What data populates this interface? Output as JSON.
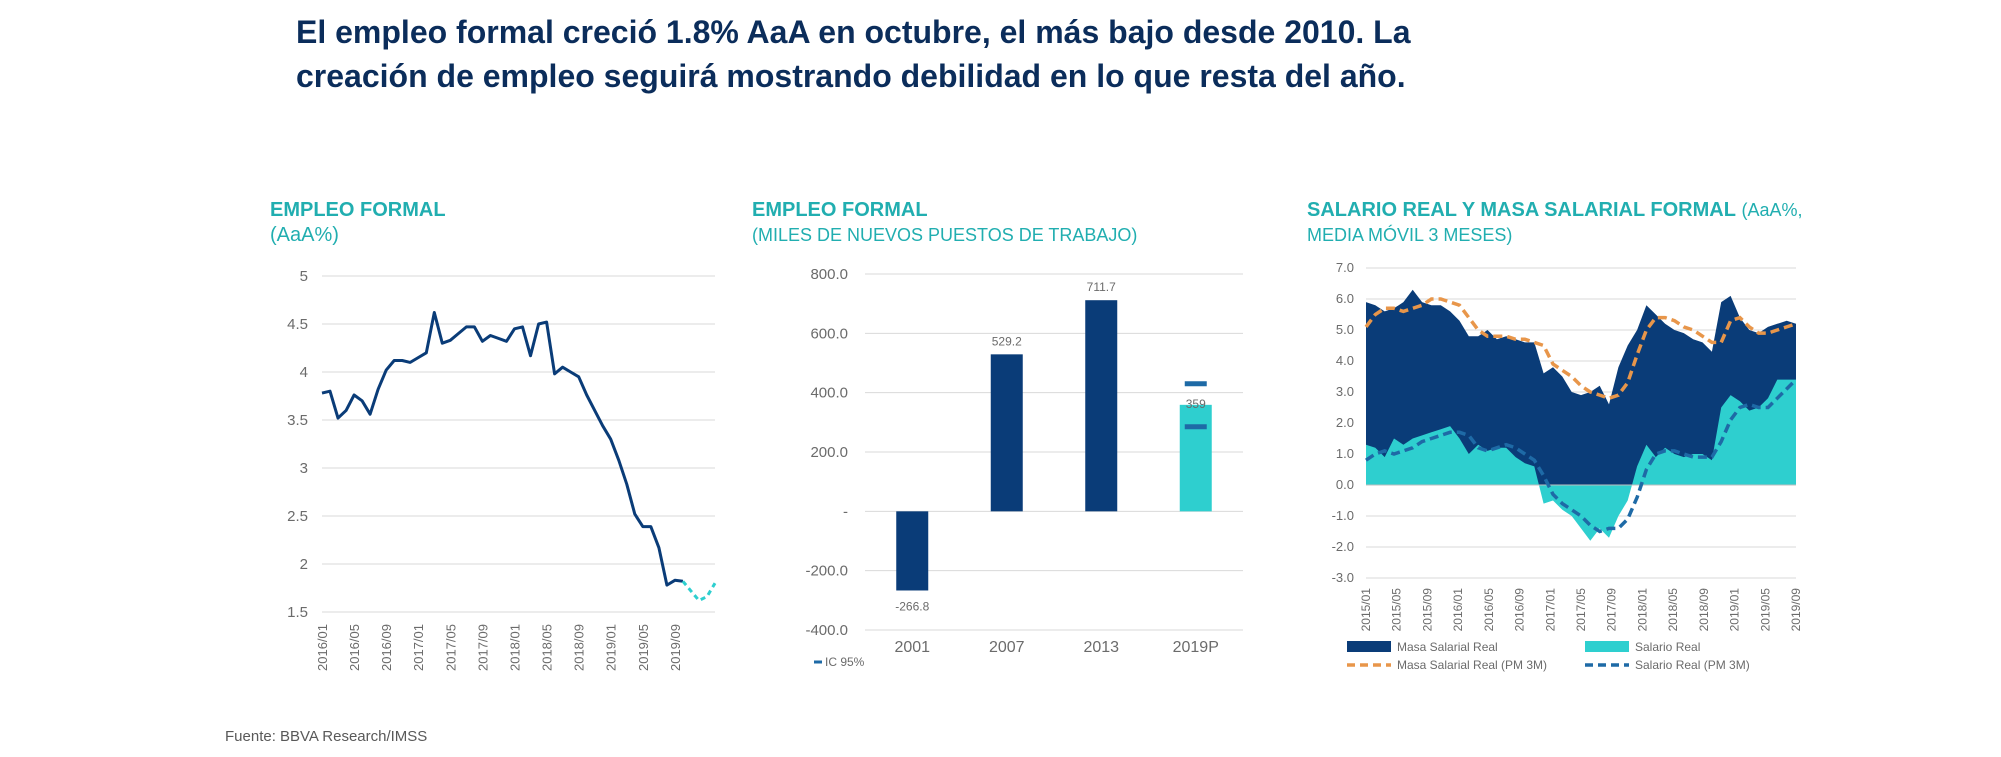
{
  "headline": {
    "line1": "El empleo formal creció 1.8% AaA en octubre, el más bajo desde 2010. La",
    "line2": "creación de empleo seguirá mostrando debilidad en lo que resta del año."
  },
  "source": "Fuente: BBVA Research/IMSS",
  "colors": {
    "navy": "#0a3c78",
    "teal": "#2ecfcf",
    "orange": "#e8964a",
    "dashblue": "#1e6aa6",
    "title": "#21aeb0"
  },
  "chart_data": [
    {
      "type": "line",
      "title": "EMPLEO FORMAL",
      "subtitle": "(AaA%)",
      "ylim": [
        1.5,
        5
      ],
      "yticks": [
        "5",
        "4.5",
        "4",
        "3.5",
        "3",
        "2.5",
        "2",
        "1.5"
      ],
      "xticks": [
        "2016/01",
        "2016/05",
        "2016/09",
        "2017/01",
        "2017/05",
        "2017/09",
        "2018/01",
        "2018/05",
        "2018/09",
        "2019/01",
        "2019/05",
        "2019/09"
      ],
      "grid": true,
      "series": [
        {
          "values": [
            3.78,
            3.8,
            3.52,
            3.6,
            3.76,
            3.7,
            3.56,
            3.82,
            4.02,
            4.12,
            4.12,
            4.1,
            4.15,
            4.2,
            4.62,
            4.3,
            4.33,
            4.4,
            4.47,
            4.47,
            4.32,
            4.38,
            4.35,
            4.32,
            4.45,
            4.47,
            4.17,
            4.5,
            4.52,
            3.98,
            4.05,
            4.0,
            3.95,
            3.76,
            3.6,
            3.44,
            3.3,
            3.08,
            2.83,
            2.52,
            2.39,
            2.39,
            2.17,
            1.78,
            1.83,
            1.82
          ]
        },
        {
          "style": "dashed-teal",
          "values": [
            1.82,
            1.72,
            1.62,
            1.66,
            1.8
          ]
        }
      ]
    },
    {
      "type": "bar",
      "title": "EMPLEO FORMAL",
      "subtitle": "(MILES DE NUEVOS  PUESTOS DE TRABAJO)",
      "categories": [
        "2001",
        "2007",
        "2013",
        "2019P"
      ],
      "values": [
        -266.8,
        529.2,
        711.7,
        359
      ],
      "value_labels": [
        "-266.8",
        "529.2",
        "711.7",
        "359"
      ],
      "ylim": [
        -400,
        800
      ],
      "yticks": [
        "800.0",
        "600.0",
        "400.0",
        "200.0",
        "-",
        "-200.0",
        "-400.0"
      ],
      "ic_95": [
        430,
        285
      ],
      "legend": "IC 95%"
    },
    {
      "type": "area",
      "title": "SALARIO REAL Y MASA SALARIAL FORMAL",
      "subtitle": "(AaA%, MEDIA MÓVIL 3 MESES)",
      "ylim": [
        -3,
        7
      ],
      "yticks": [
        "7.0",
        "6.0",
        "5.0",
        "4.0",
        "3.0",
        "2.0",
        "1.0",
        "0.0",
        "-1.0",
        "-2.0",
        "-3.0"
      ],
      "xticks": [
        "2015/01",
        "2015/05",
        "2015/09",
        "2016/01",
        "2016/05",
        "2016/09",
        "2017/01",
        "2017/05",
        "2017/09",
        "2018/01",
        "2018/05",
        "2018/09",
        "2019/01",
        "2019/05",
        "2019/09"
      ],
      "series": [
        {
          "name": "Masa Salarial Real",
          "values": [
            5.9,
            5.8,
            5.6,
            5.7,
            5.9,
            6.3,
            5.9,
            5.8,
            5.8,
            5.6,
            5.3,
            4.8,
            4.8,
            5.0,
            4.7,
            4.8,
            4.7,
            4.6,
            4.6,
            3.6,
            3.8,
            3.5,
            3.0,
            2.9,
            3.0,
            3.2,
            2.6,
            3.8,
            4.5,
            5.0,
            5.8,
            5.5,
            5.2,
            5.0,
            4.9,
            4.7,
            4.6,
            4.3,
            5.9,
            6.1,
            5.4,
            5.0,
            4.9,
            5.1,
            5.2,
            5.3,
            5.2
          ]
        },
        {
          "name": "Salario Real",
          "values": [
            1.3,
            1.2,
            0.9,
            1.5,
            1.3,
            1.5,
            1.6,
            1.7,
            1.8,
            1.9,
            1.5,
            1.0,
            1.3,
            1.1,
            1.2,
            1.2,
            0.9,
            0.7,
            0.6,
            -0.6,
            -0.5,
            -0.8,
            -1.0,
            -1.4,
            -1.8,
            -1.4,
            -1.7,
            -1.0,
            -0.5,
            0.6,
            1.3,
            0.9,
            1.2,
            1.0,
            0.9,
            1.0,
            1.0,
            0.8,
            2.5,
            2.9,
            2.7,
            2.4,
            2.5,
            2.8,
            3.4,
            3.4,
            3.4
          ]
        },
        {
          "name": "Masa Salarial Real (PM 3M)",
          "style": "dashed",
          "values": [
            5.1,
            5.5,
            5.7,
            5.7,
            5.6,
            5.7,
            5.8,
            6.0,
            6.0,
            5.9,
            5.8,
            5.4,
            5.0,
            4.8,
            4.8,
            4.8,
            4.7,
            4.7,
            4.6,
            4.5,
            3.9,
            3.7,
            3.5,
            3.2,
            3.0,
            2.9,
            2.8,
            2.9,
            3.3,
            4.2,
            5.0,
            5.4,
            5.4,
            5.3,
            5.1,
            5.0,
            4.8,
            4.6,
            4.6,
            5.3,
            5.4,
            5.1,
            4.9,
            4.9,
            5.0,
            5.1,
            5.2
          ]
        },
        {
          "name": "Salario Real (PM 3M)",
          "style": "dashed",
          "values": [
            0.8,
            1.0,
            1.1,
            1.0,
            1.1,
            1.2,
            1.4,
            1.5,
            1.6,
            1.7,
            1.7,
            1.6,
            1.2,
            1.1,
            1.2,
            1.3,
            1.2,
            1.0,
            0.8,
            0.3,
            -0.3,
            -0.6,
            -0.8,
            -1.0,
            -1.3,
            -1.5,
            -1.4,
            -1.4,
            -1.1,
            -0.4,
            0.5,
            1.0,
            1.1,
            1.1,
            1.0,
            0.9,
            0.9,
            0.9,
            1.4,
            2.1,
            2.5,
            2.6,
            2.5,
            2.5,
            2.8,
            3.1,
            3.4
          ]
        }
      ],
      "legend": [
        "Masa Salarial Real",
        "Salario Real",
        "Masa Salarial Real (PM 3M)",
        "Salario Real (PM 3M)"
      ]
    }
  ]
}
